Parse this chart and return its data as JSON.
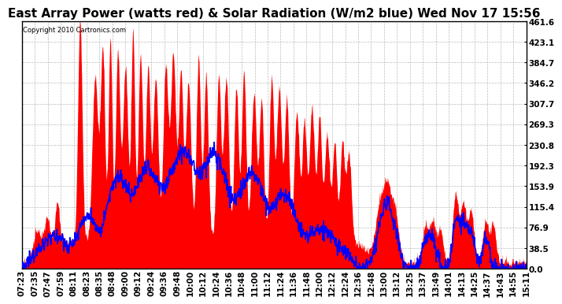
{
  "title": "East Array Power (watts red) & Solar Radiation (W/m2 blue) Wed Nov 17 15:56",
  "copyright_text": "Copyright 2010 Cartronics.com",
  "y_ticks": [
    0.0,
    38.5,
    76.9,
    115.4,
    153.9,
    192.3,
    230.8,
    269.3,
    307.7,
    346.2,
    384.7,
    423.1,
    461.6
  ],
  "y_max": 461.6,
  "background_color": "#ffffff",
  "grid_color": "#bbbbbb",
  "fill_color": "#ff0000",
  "line_color": "#0000ff",
  "title_fontsize": 11,
  "tick_label_fontsize": 7.5,
  "x_tick_labels": [
    "07:23",
    "07:35",
    "07:47",
    "07:59",
    "08:11",
    "08:23",
    "08:35",
    "08:48",
    "09:00",
    "09:12",
    "09:24",
    "09:36",
    "09:48",
    "10:00",
    "10:12",
    "10:24",
    "10:36",
    "10:48",
    "11:00",
    "11:12",
    "11:24",
    "11:36",
    "11:48",
    "12:00",
    "12:12",
    "12:24",
    "12:36",
    "12:48",
    "13:00",
    "13:12",
    "13:25",
    "13:37",
    "13:49",
    "14:01",
    "14:13",
    "14:25",
    "14:37",
    "14:43",
    "14:55",
    "15:11"
  ]
}
